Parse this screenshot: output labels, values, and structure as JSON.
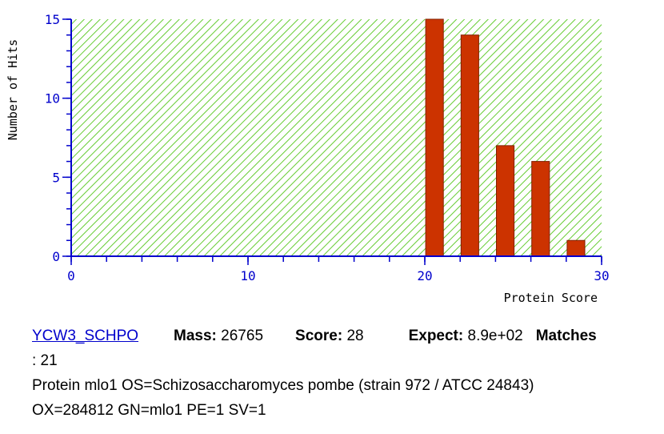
{
  "chart_data": {
    "type": "bar",
    "ylabel": "Number of Hits",
    "xlabel": "Protein Score",
    "xlim": [
      0,
      30
    ],
    "ylim": [
      0,
      15
    ],
    "x_ticks": [
      0,
      10,
      20,
      30
    ],
    "y_ticks": [
      0,
      5,
      10,
      15
    ],
    "bar_x": [
      21,
      23,
      25,
      27,
      29
    ],
    "values": [
      15,
      14,
      7,
      6,
      1
    ],
    "threshold": 30,
    "colors": {
      "bars": "#cc3300",
      "bar_edge": "#802000",
      "hatch": "#66cc33",
      "axis": "#0000cc"
    },
    "grid": false
  },
  "hit": {
    "accession": "YCW3_SCHPO",
    "mass_label": "Mass:",
    "mass": "26765",
    "score_label": "Score:",
    "score": "28",
    "expect_label": "Expect:",
    "expect": "8.9e+02",
    "matches_label": "Matches",
    "matches": ": 21",
    "description_line1": "Protein mlo1 OS=Schizosaccharomyces pombe (strain 972 / ATCC 24843)",
    "description_line2": "OX=284812 GN=mlo1 PE=1 SV=1"
  }
}
